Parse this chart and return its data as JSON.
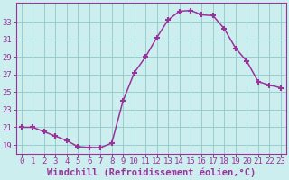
{
  "x": [
    0,
    1,
    2,
    3,
    4,
    5,
    6,
    7,
    8,
    9,
    10,
    11,
    12,
    13,
    14,
    15,
    16,
    17,
    18,
    19,
    20,
    21,
    22,
    23
  ],
  "y": [
    21.0,
    21.0,
    20.5,
    20.0,
    19.5,
    18.8,
    18.7,
    18.7,
    19.2,
    24.0,
    27.2,
    29.0,
    31.2,
    33.2,
    34.2,
    34.3,
    33.8,
    33.7,
    32.2,
    30.0,
    28.5,
    26.2,
    25.8,
    25.5
  ],
  "line_color": "#993399",
  "marker": "+",
  "marker_size": 5,
  "marker_lw": 1.5,
  "bg_color": "#cceeee",
  "grid_color": "#99cccc",
  "axis_color": "#993399",
  "spine_color": "#993399",
  "xlabel": "Windchill (Refroidissement éolien,°C)",
  "ylabel": "",
  "xlim": [
    -0.5,
    23.5
  ],
  "ylim": [
    18.0,
    35.2
  ],
  "yticks": [
    19,
    21,
    23,
    25,
    27,
    29,
    31,
    33
  ],
  "xticks": [
    0,
    1,
    2,
    3,
    4,
    5,
    6,
    7,
    8,
    9,
    10,
    11,
    12,
    13,
    14,
    15,
    16,
    17,
    18,
    19,
    20,
    21,
    22,
    23
  ],
  "xtick_labels": [
    "0",
    "1",
    "2",
    "3",
    "4",
    "5",
    "6",
    "7",
    "8",
    "9",
    "10",
    "11",
    "12",
    "13",
    "14",
    "15",
    "16",
    "17",
    "18",
    "19",
    "20",
    "21",
    "22",
    "23"
  ],
  "font_size": 6.5,
  "xlabel_size": 7.5,
  "linewidth": 1.1
}
